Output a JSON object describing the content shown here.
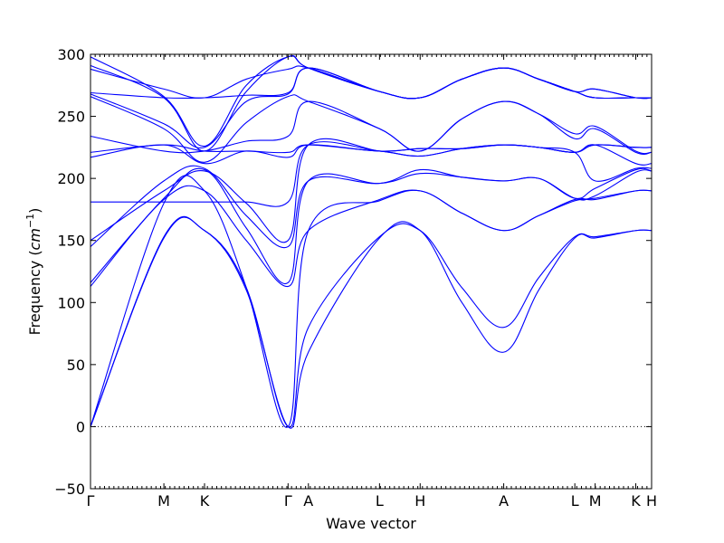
{
  "chart_data": {
    "type": "line",
    "xlabel": "Wave vector",
    "ylabel": "Frequency (cm⁻¹)",
    "ylabel_parts": {
      "prefix": "Frequency (",
      "unit": "cm",
      "exp": "−1",
      "suffix": ")"
    },
    "ylim": [
      -50,
      300
    ],
    "xlim": [
      0,
      4.97
    ],
    "y_ticks": [
      -50,
      0,
      50,
      100,
      150,
      200,
      250,
      300
    ],
    "y_tick_labels": [
      "−50",
      "0",
      "50",
      "100",
      "150",
      "200",
      "250",
      "300"
    ],
    "zero_line": true,
    "grid": false,
    "x_ticks": [
      {
        "label": "Γ",
        "x": 0.0
      },
      {
        "label": "M",
        "x": 0.65
      },
      {
        "label": "K",
        "x": 1.01
      },
      {
        "label": "Γ",
        "x": 1.75
      },
      {
        "label": "A",
        "x": 1.93
      },
      {
        "label": "L",
        "x": 2.56
      },
      {
        "label": "H",
        "x": 2.92
      },
      {
        "label": "A",
        "x": 3.66
      },
      {
        "label": "L",
        "x": 4.29
      },
      {
        "label": "M",
        "x": 4.47
      },
      {
        "label": "K",
        "x": 4.83
      },
      {
        "label": "H",
        "x": 4.97
      }
    ],
    "band_color": "#0000ff",
    "series": [
      {
        "points": [
          [
            0,
            0
          ],
          [
            0.65,
            152
          ],
          [
            1.01,
            158
          ],
          [
            1.38,
            110
          ],
          [
            1.75,
            0
          ],
          [
            1.93,
            60
          ],
          [
            2.56,
            152
          ],
          [
            2.92,
            158
          ],
          [
            3.29,
            100
          ],
          [
            3.66,
            60
          ],
          [
            3.97,
            110
          ],
          [
            4.29,
            152
          ],
          [
            4.47,
            152
          ],
          [
            4.83,
            158
          ],
          [
            4.97,
            158
          ]
        ]
      },
      {
        "points": [
          [
            0,
            0
          ],
          [
            0.65,
            153
          ],
          [
            1.01,
            158
          ],
          [
            1.38,
            112
          ],
          [
            1.75,
            0
          ],
          [
            1.93,
            80
          ],
          [
            2.56,
            153
          ],
          [
            2.92,
            158
          ],
          [
            3.29,
            112
          ],
          [
            3.66,
            80
          ],
          [
            3.97,
            120
          ],
          [
            4.29,
            153
          ],
          [
            4.47,
            153
          ],
          [
            4.83,
            158
          ],
          [
            4.97,
            158
          ]
        ]
      },
      {
        "points": [
          [
            0,
            0
          ],
          [
            0.65,
            180
          ],
          [
            1.01,
            190
          ],
          [
            1.38,
            112
          ],
          [
            1.75,
            0
          ],
          [
            1.93,
            158
          ],
          [
            2.56,
            182
          ],
          [
            2.92,
            190
          ],
          [
            3.29,
            172
          ],
          [
            3.66,
            158
          ],
          [
            3.97,
            170
          ],
          [
            4.29,
            182
          ],
          [
            4.47,
            184
          ],
          [
            4.83,
            190
          ],
          [
            4.97,
            190
          ]
        ]
      },
      {
        "points": [
          [
            0,
            113
          ],
          [
            0.65,
            183
          ],
          [
            1.01,
            190
          ],
          [
            1.38,
            150
          ],
          [
            1.75,
            113
          ],
          [
            1.93,
            158
          ],
          [
            2.56,
            183
          ],
          [
            2.92,
            190
          ],
          [
            3.29,
            172
          ],
          [
            3.66,
            158
          ],
          [
            3.97,
            170
          ],
          [
            4.29,
            183
          ],
          [
            4.47,
            183
          ],
          [
            4.83,
            190
          ],
          [
            4.97,
            190
          ]
        ]
      },
      {
        "points": [
          [
            0,
            116
          ],
          [
            0.65,
            184
          ],
          [
            1.01,
            207
          ],
          [
            1.38,
            160
          ],
          [
            1.75,
            116
          ],
          [
            1.93,
            198
          ],
          [
            2.56,
            196
          ],
          [
            2.92,
            204
          ],
          [
            3.29,
            201
          ],
          [
            3.66,
            198
          ],
          [
            3.97,
            200
          ],
          [
            4.29,
            184
          ],
          [
            4.47,
            186
          ],
          [
            4.83,
            205
          ],
          [
            4.97,
            206
          ]
        ]
      },
      {
        "points": [
          [
            0,
            145
          ],
          [
            0.65,
            198
          ],
          [
            1.01,
            208
          ],
          [
            1.38,
            170
          ],
          [
            1.75,
            145
          ],
          [
            1.93,
            198
          ],
          [
            2.56,
            196
          ],
          [
            2.92,
            207
          ],
          [
            3.29,
            201
          ],
          [
            3.66,
            198
          ],
          [
            3.97,
            200
          ],
          [
            4.29,
            184
          ],
          [
            4.47,
            192
          ],
          [
            4.83,
            207
          ],
          [
            4.97,
            206
          ]
        ]
      },
      {
        "points": [
          [
            0,
            150
          ],
          [
            0.65,
            190
          ],
          [
            1.01,
            206
          ],
          [
            1.38,
            180
          ],
          [
            1.75,
            150
          ],
          [
            1.93,
            227
          ],
          [
            2.56,
            222
          ],
          [
            2.92,
            218
          ],
          [
            3.29,
            224
          ],
          [
            3.66,
            227
          ],
          [
            3.97,
            225
          ],
          [
            4.29,
            221
          ],
          [
            4.47,
            198
          ],
          [
            4.83,
            208
          ],
          [
            4.97,
            208
          ]
        ]
      },
      {
        "points": [
          [
            0,
            181
          ],
          [
            0.65,
            181
          ],
          [
            1.01,
            181
          ],
          [
            1.38,
            181
          ],
          [
            1.75,
            181
          ],
          [
            1.93,
            227
          ],
          [
            2.56,
            222
          ],
          [
            2.92,
            218
          ],
          [
            3.29,
            224
          ],
          [
            3.66,
            227
          ],
          [
            3.97,
            225
          ],
          [
            4.29,
            221
          ],
          [
            4.47,
            227
          ],
          [
            4.83,
            212
          ],
          [
            4.97,
            212
          ]
        ]
      },
      {
        "points": [
          [
            0,
            217
          ],
          [
            0.65,
            227
          ],
          [
            1.01,
            212
          ],
          [
            1.38,
            222
          ],
          [
            1.75,
            217
          ],
          [
            1.93,
            227
          ],
          [
            2.56,
            222
          ],
          [
            2.92,
            224
          ],
          [
            3.29,
            224
          ],
          [
            3.66,
            227
          ],
          [
            3.97,
            225
          ],
          [
            4.29,
            221
          ],
          [
            4.47,
            227
          ],
          [
            4.83,
            225
          ],
          [
            4.97,
            225
          ]
        ]
      },
      {
        "points": [
          [
            0,
            221
          ],
          [
            0.65,
            227
          ],
          [
            1.01,
            222
          ],
          [
            1.38,
            222
          ],
          [
            1.75,
            221
          ],
          [
            1.93,
            227
          ],
          [
            2.56,
            222
          ],
          [
            2.92,
            224
          ],
          [
            3.29,
            224
          ],
          [
            3.66,
            227
          ],
          [
            3.97,
            225
          ],
          [
            4.29,
            221
          ],
          [
            4.47,
            227
          ],
          [
            4.83,
            225
          ],
          [
            4.97,
            225
          ]
        ]
      },
      {
        "points": [
          [
            0,
            234
          ],
          [
            0.65,
            222
          ],
          [
            1.01,
            222
          ],
          [
            1.38,
            230
          ],
          [
            1.75,
            234
          ],
          [
            1.93,
            262
          ],
          [
            2.56,
            240
          ],
          [
            2.92,
            222
          ],
          [
            3.29,
            248
          ],
          [
            3.66,
            262
          ],
          [
            3.97,
            252
          ],
          [
            4.29,
            236
          ],
          [
            4.47,
            242
          ],
          [
            4.83,
            222
          ],
          [
            4.97,
            221
          ]
        ]
      },
      {
        "points": [
          [
            0,
            266
          ],
          [
            0.65,
            240
          ],
          [
            1.01,
            213
          ],
          [
            1.38,
            245
          ],
          [
            1.75,
            266
          ],
          [
            1.93,
            262
          ],
          [
            2.56,
            240
          ],
          [
            2.92,
            222
          ],
          [
            3.29,
            248
          ],
          [
            3.66,
            262
          ],
          [
            3.97,
            252
          ],
          [
            4.29,
            232
          ],
          [
            4.47,
            240
          ],
          [
            4.83,
            221
          ],
          [
            4.97,
            221
          ]
        ]
      },
      {
        "points": [
          [
            0,
            268
          ],
          [
            0.65,
            244
          ],
          [
            1.01,
            225
          ],
          [
            1.38,
            262
          ],
          [
            1.75,
            268
          ],
          [
            1.93,
            289
          ],
          [
            2.56,
            270
          ],
          [
            2.92,
            265
          ],
          [
            3.29,
            280
          ],
          [
            3.66,
            289
          ],
          [
            3.97,
            280
          ],
          [
            4.29,
            270
          ],
          [
            4.47,
            265
          ],
          [
            4.83,
            265
          ],
          [
            4.97,
            265
          ]
        ]
      },
      {
        "points": [
          [
            0,
            269
          ],
          [
            0.65,
            265
          ],
          [
            1.01,
            265
          ],
          [
            1.38,
            267
          ],
          [
            1.75,
            269
          ],
          [
            1.93,
            289
          ],
          [
            2.56,
            270
          ],
          [
            2.92,
            265
          ],
          [
            3.29,
            280
          ],
          [
            3.66,
            289
          ],
          [
            3.97,
            280
          ],
          [
            4.29,
            270
          ],
          [
            4.47,
            272
          ],
          [
            4.83,
            265
          ],
          [
            4.97,
            265
          ]
        ]
      },
      {
        "points": [
          [
            0,
            288
          ],
          [
            0.65,
            272
          ],
          [
            1.01,
            265
          ],
          [
            1.38,
            280
          ],
          [
            1.75,
            288
          ],
          [
            1.93,
            289
          ],
          [
            2.56,
            270
          ],
          [
            2.92,
            265
          ],
          [
            3.29,
            280
          ],
          [
            3.66,
            289
          ],
          [
            3.97,
            280
          ],
          [
            4.29,
            270
          ],
          [
            4.47,
            272
          ],
          [
            4.83,
            265
          ],
          [
            4.97,
            265
          ]
        ]
      },
      {
        "points": [
          [
            0,
            291
          ],
          [
            0.65,
            265
          ],
          [
            1.01,
            222
          ],
          [
            1.38,
            270
          ],
          [
            1.75,
            298
          ],
          [
            1.93,
            289
          ],
          [
            2.56,
            270
          ],
          [
            2.92,
            265
          ],
          [
            3.29,
            280
          ],
          [
            3.66,
            289
          ],
          [
            3.97,
            280
          ],
          [
            4.29,
            270
          ],
          [
            4.47,
            265
          ],
          [
            4.83,
            265
          ],
          [
            4.97,
            265
          ]
        ]
      },
      {
        "points": [
          [
            0,
            298
          ],
          [
            0.65,
            266
          ],
          [
            1.01,
            226
          ],
          [
            1.38,
            275
          ],
          [
            1.75,
            298
          ],
          [
            1.93,
            289
          ],
          [
            2.56,
            270
          ],
          [
            2.92,
            265
          ],
          [
            3.29,
            280
          ],
          [
            3.66,
            289
          ],
          [
            3.97,
            280
          ],
          [
            4.29,
            270
          ],
          [
            4.47,
            265
          ],
          [
            4.83,
            265
          ],
          [
            4.97,
            265
          ]
        ]
      }
    ]
  }
}
